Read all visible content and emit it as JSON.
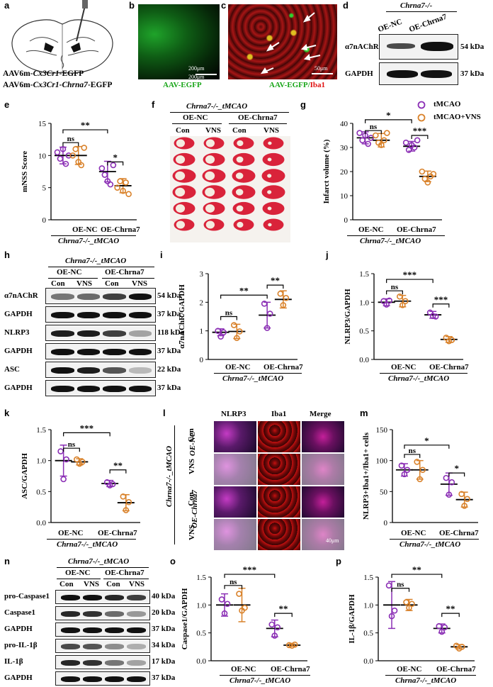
{
  "labels": {
    "a": "a",
    "b": "b",
    "c": "c",
    "d": "d",
    "e": "e",
    "f": "f",
    "g": "g",
    "h": "h",
    "i": "i",
    "j": "j",
    "k": "k",
    "l": "l",
    "m": "m",
    "n": "n",
    "o": "o",
    "p": "p"
  },
  "panel_a": {
    "line1_prefix": "AAV6m-",
    "line1_italic": "Cx3Cr1",
    "line1_suffix": "-EGFP",
    "line2_prefix": "AAV6m-",
    "line2_italic": "Cx3Cr1-Chrna7",
    "line2_suffix": "-EGFP"
  },
  "panel_b": {
    "caption": "AAV-EGFP",
    "scale": "200μm",
    "scale2": "200μm"
  },
  "panel_c": {
    "caption_green": "AAV-EGFP/",
    "caption_red": "Iba1",
    "scale": "50μm"
  },
  "panel_d": {
    "genotype": "Chrna7-/-",
    "col1": "OE-NC",
    "col2": "OE-Chrna7",
    "rows": [
      {
        "name": "α7nAChR",
        "kda": "54 kDa"
      },
      {
        "name": "GAPDH",
        "kda": "37 kDa"
      }
    ]
  },
  "legend": {
    "items": [
      "tMCAO",
      "tMCAO+VNS"
    ],
    "colors": [
      "#8b2fb5",
      "#d9822b"
    ]
  },
  "common": {
    "group1": "OE-NC",
    "group2": "OE-Chrna7",
    "genotype": "Chrna7-/-_tMCAO"
  },
  "panel_f": {
    "genotype": "Chrna7-/-_tMCAO",
    "g1": "OE-NC",
    "g2": "OE-Chrna7",
    "cols": [
      "Con",
      "VNS",
      "Con",
      "VNS"
    ]
  },
  "panel_h": {
    "genotype": "Chrna7-/-_tMCAO",
    "g1": "OE-NC",
    "g2": "OE-Chrna7",
    "cols": [
      "Con",
      "VNS",
      "Con",
      "VNS"
    ],
    "rows": [
      {
        "name": "α7nAChR",
        "kda": "54 kDa"
      },
      {
        "name": "GAPDH",
        "kda": "37 kDa"
      },
      {
        "name": "NLRP3",
        "kda": "118 kDa"
      },
      {
        "name": "GAPDH",
        "kda": "37 kDa"
      },
      {
        "name": "ASC",
        "kda": "22 kDa"
      },
      {
        "name": "GAPDH",
        "kda": "37 kDa"
      }
    ]
  },
  "panel_l": {
    "cols": [
      "NLRP3",
      "Iba1",
      "Merge"
    ],
    "rows": [
      "Con",
      "VNS",
      "Con",
      "VNS"
    ],
    "g1": "OE-NC",
    "g2": "OE-Chrna7",
    "genotype": "Chrna7-/-_tMCAO",
    "scale": "40μm"
  },
  "panel_n": {
    "genotype": "Chrna7-/-_tMCAO",
    "g1": "OE-NC",
    "g2": "OE-Chrna7",
    "cols": [
      "Con",
      "VNS",
      "Con",
      "VNS"
    ],
    "rows": [
      {
        "name": "pro-Caspase1",
        "kda": "40 kDa"
      },
      {
        "name": "Caspase1",
        "kda": "20 kDa"
      },
      {
        "name": "GAPDH",
        "kda": "37 kDa"
      },
      {
        "name": "pro-IL-1β",
        "kda": "34 kDa"
      },
      {
        "name": "IL-1β",
        "kda": "17 kDa"
      },
      {
        "name": "GAPDH",
        "kda": "37 kDa"
      }
    ]
  },
  "chart_data": [
    {
      "id": "e",
      "type": "scatter",
      "ylabel": "mNSS Score",
      "ylim": [
        0,
        15
      ],
      "yticks": [
        "0",
        "5",
        "10",
        "15"
      ],
      "ticks": [
        0,
        5,
        10,
        15
      ],
      "ntick": 3,
      "groups": [
        {
          "mean": 10,
          "sd": 1.3,
          "pts": [
            10.5,
            9.5,
            11,
            8.7,
            10
          ]
        },
        {
          "mean": 10,
          "sd": 1.4,
          "pts": [
            10,
            11,
            9,
            8.5,
            11.2
          ]
        },
        {
          "mean": 7.5,
          "sd": 1.6,
          "pts": [
            8,
            7,
            6,
            5.5,
            8.5
          ]
        },
        {
          "mean": 5.3,
          "sd": 1.1,
          "pts": [
            5,
            6,
            4.5,
            5.8,
            4
          ]
        }
      ],
      "sig": [
        {
          "from": 0,
          "to": 2,
          "label": "**",
          "level": 14
        },
        {
          "from": 0,
          "to": 1,
          "label": "ns",
          "level": 12
        },
        {
          "from": 2,
          "to": 3,
          "label": "*",
          "level": 9
        }
      ]
    },
    {
      "id": "g",
      "type": "scatter",
      "ylabel": "Infarct volume (%)",
      "ylim": [
        0,
        40
      ],
      "yticks": [
        "0",
        "10",
        "20",
        "30",
        "40"
      ],
      "ticks": [
        0,
        10,
        20,
        30,
        40
      ],
      "ntick": 4,
      "groups": [
        {
          "mean": 34,
          "sd": 2.5,
          "pts": [
            36,
            33,
            35,
            31.5,
            34
          ]
        },
        {
          "mean": 33,
          "sd": 2.8,
          "pts": [
            35,
            32,
            31,
            33,
            36
          ]
        },
        {
          "mean": 30.5,
          "sd": 2,
          "pts": [
            32,
            29,
            31,
            30,
            33
          ]
        },
        {
          "mean": 18,
          "sd": 2.2,
          "pts": [
            20,
            17,
            15.5,
            18,
            19
          ]
        }
      ],
      "sig": [
        {
          "from": 0,
          "to": 2,
          "label": "*",
          "level": 41.5
        },
        {
          "from": 0,
          "to": 1,
          "label": "ns",
          "level": 37
        },
        {
          "from": 2,
          "to": 3,
          "label": "***",
          "level": 35
        }
      ]
    },
    {
      "id": "i",
      "type": "scatter",
      "ylabel": "α7nAChR/GAPDH",
      "ylim": [
        0,
        3
      ],
      "yticks": [
        "0",
        "1",
        "2",
        "3"
      ],
      "ticks": [
        0,
        1,
        2,
        3
      ],
      "ntick": 3,
      "groups": [
        {
          "mean": 0.95,
          "sd": 0.12,
          "pts": [
            1,
            0.8,
            0.95
          ]
        },
        {
          "mean": 0.98,
          "sd": 0.25,
          "pts": [
            1.2,
            0.75,
            0.98
          ]
        },
        {
          "mean": 1.55,
          "sd": 0.45,
          "pts": [
            1.95,
            1.1,
            1.6
          ]
        },
        {
          "mean": 2.1,
          "sd": 0.3,
          "pts": [
            2.3,
            1.9,
            2.15
          ]
        }
      ],
      "sig": [
        {
          "from": 0,
          "to": 2,
          "label": "**",
          "level": 2.25
        },
        {
          "from": 0,
          "to": 1,
          "label": "ns",
          "level": 1.5
        },
        {
          "from": 2,
          "to": 3,
          "label": "**",
          "level": 2.6
        }
      ]
    },
    {
      "id": "j",
      "type": "scatter",
      "ylabel": "NLRP3/GAPDH",
      "ylim": [
        0,
        1.5
      ],
      "yticks": [
        "0.0",
        "0.5",
        "1.0",
        "1.5"
      ],
      "ticks": [
        0,
        0.5,
        1,
        1.5
      ],
      "ntick": 3,
      "groups": [
        {
          "mean": 1,
          "sd": 0.06,
          "pts": [
            1.02,
            0.96,
            1.03
          ]
        },
        {
          "mean": 1.02,
          "sd": 0.1,
          "pts": [
            1.1,
            0.95,
            1.02
          ]
        },
        {
          "mean": 0.78,
          "sd": 0.06,
          "pts": [
            0.82,
            0.76,
            0.75
          ]
        },
        {
          "mean": 0.35,
          "sd": 0.05,
          "pts": [
            0.38,
            0.32,
            0.34
          ]
        }
      ],
      "sig": [
        {
          "from": 0,
          "to": 2,
          "label": "***",
          "level": 1.4
        },
        {
          "from": 0,
          "to": 1,
          "label": "ns",
          "level": 1.2
        },
        {
          "from": 2,
          "to": 3,
          "label": "***",
          "level": 0.97
        }
      ]
    },
    {
      "id": "k",
      "type": "scatter",
      "ylabel": "ASC/GAPDH",
      "ylim": [
        0,
        1.5
      ],
      "yticks": [
        "0.0",
        "0.5",
        "1.0",
        "1.5"
      ],
      "ticks": [
        0,
        0.5,
        1,
        1.5
      ],
      "ntick": 3,
      "groups": [
        {
          "mean": 1,
          "sd": 0.25,
          "pts": [
            1.15,
            0.7,
            1.02
          ]
        },
        {
          "mean": 0.98,
          "sd": 0.05,
          "pts": [
            1.02,
            0.95,
            0.98
          ]
        },
        {
          "mean": 0.63,
          "sd": 0.05,
          "pts": [
            0.65,
            0.6,
            0.62
          ]
        },
        {
          "mean": 0.32,
          "sd": 0.13,
          "pts": [
            0.42,
            0.2,
            0.33
          ]
        }
      ],
      "sig": [
        {
          "from": 0,
          "to": 2,
          "label": "***",
          "level": 1.45
        },
        {
          "from": 0,
          "to": 1,
          "label": "ns",
          "level": 1.2
        },
        {
          "from": 2,
          "to": 3,
          "label": "**",
          "level": 0.85
        }
      ]
    },
    {
      "id": "m",
      "type": "scatter",
      "ylabel": "NLRP3+Iba1+/Iba1+ cells",
      "ylim": [
        0,
        150
      ],
      "yticks": [
        "0",
        "50",
        "100",
        "150"
      ],
      "ticks": [
        0,
        50,
        100,
        150
      ],
      "ntick": 3,
      "groups": [
        {
          "mean": 85,
          "sd": 10,
          "pts": [
            92,
            78,
            85
          ]
        },
        {
          "mean": 85,
          "sd": 15,
          "pts": [
            98,
            70,
            85
          ]
        },
        {
          "mean": 62,
          "sd": 18,
          "pts": [
            72,
            45,
            65
          ]
        },
        {
          "mean": 37,
          "sd": 12,
          "pts": [
            46,
            27,
            38
          ]
        }
      ],
      "sig": [
        {
          "from": 0,
          "to": 2,
          "label": "*",
          "level": 125
        },
        {
          "from": 0,
          "to": 1,
          "label": "ns",
          "level": 110
        },
        {
          "from": 2,
          "to": 3,
          "label": "*",
          "level": 80
        }
      ]
    },
    {
      "id": "o",
      "type": "scatter",
      "ylabel": "Caspase1/GAPDH",
      "ylim": [
        0,
        1.5
      ],
      "yticks": [
        "0.0",
        "0.5",
        "1.0",
        "1.5"
      ],
      "ticks": [
        0,
        0.5,
        1,
        1.5
      ],
      "ntick": 3,
      "groups": [
        {
          "mean": 1,
          "sd": 0.2,
          "pts": [
            1.1,
            0.85,
            1.02
          ]
        },
        {
          "mean": 1,
          "sd": 0.3,
          "pts": [
            1.2,
            0.9,
            0.95
          ]
        },
        {
          "mean": 0.58,
          "sd": 0.15,
          "pts": [
            0.65,
            0.45,
            0.6
          ]
        },
        {
          "mean": 0.28,
          "sd": 0.02,
          "pts": [
            0.28,
            0.27,
            0.29
          ]
        }
      ],
      "sig": [
        {
          "from": 0,
          "to": 2,
          "label": "***",
          "level": 1.55
        },
        {
          "from": 0,
          "to": 1,
          "label": "ns",
          "level": 1.35
        },
        {
          "from": 2,
          "to": 3,
          "label": "**",
          "level": 0.85
        }
      ]
    },
    {
      "id": "p",
      "type": "scatter",
      "ylabel": "IL-1β/GAPDH",
      "ylim": [
        0,
        1.5
      ],
      "yticks": [
        "0.0",
        "0.5",
        "1.0",
        "1.5"
      ],
      "ticks": [
        0,
        0.5,
        1,
        1.5
      ],
      "ntick": 3,
      "groups": [
        {
          "mean": 1,
          "sd": 0.42,
          "pts": [
            1.35,
            0.8,
            0.9
          ]
        },
        {
          "mean": 1,
          "sd": 0.1,
          "pts": [
            1.05,
            0.95,
            1.02
          ]
        },
        {
          "mean": 0.58,
          "sd": 0.08,
          "pts": [
            0.62,
            0.52,
            0.6
          ]
        },
        {
          "mean": 0.25,
          "sd": 0.04,
          "pts": [
            0.27,
            0.22,
            0.25
          ]
        }
      ],
      "sig": [
        {
          "from": 0,
          "to": 2,
          "label": "**",
          "level": 1.55
        },
        {
          "from": 0,
          "to": 1,
          "label": "ns",
          "level": 1.3
        },
        {
          "from": 2,
          "to": 3,
          "label": "**",
          "level": 0.85
        }
      ]
    }
  ]
}
